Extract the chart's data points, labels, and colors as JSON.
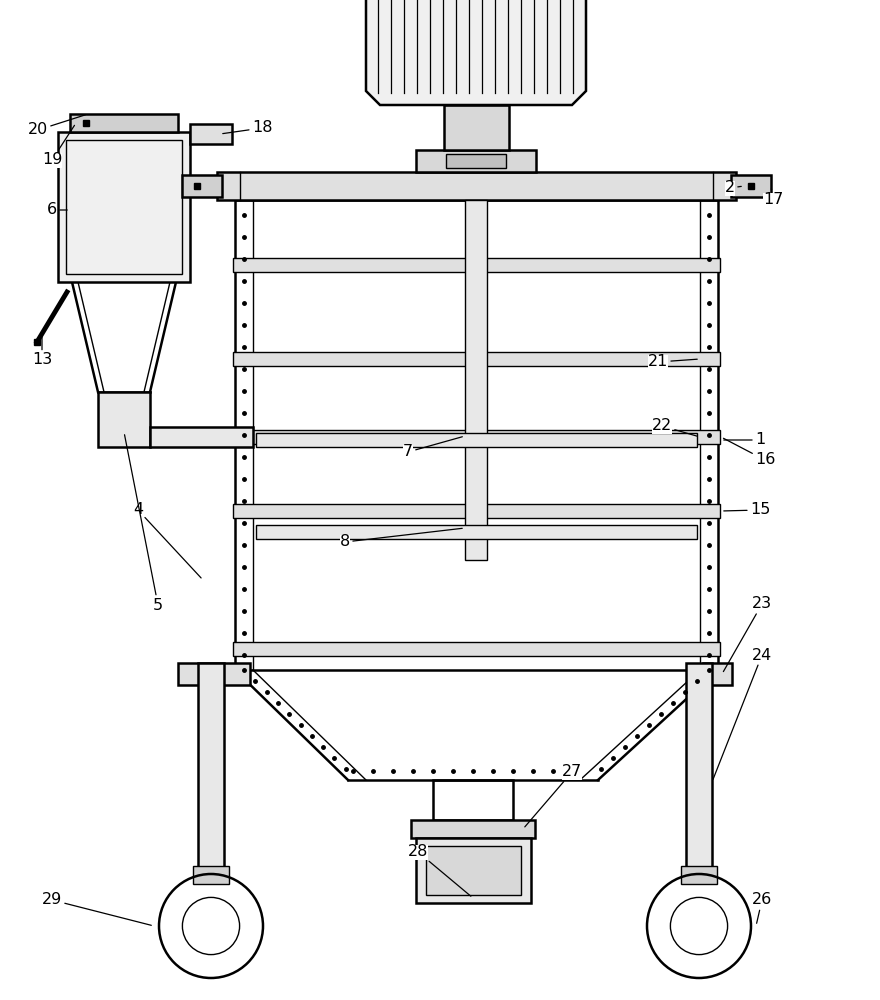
{
  "background": "#ffffff",
  "line_color": "#000000",
  "lw_main": 1.8,
  "lw_thin": 1.0,
  "fig_width": 8.8,
  "fig_height": 10.0
}
